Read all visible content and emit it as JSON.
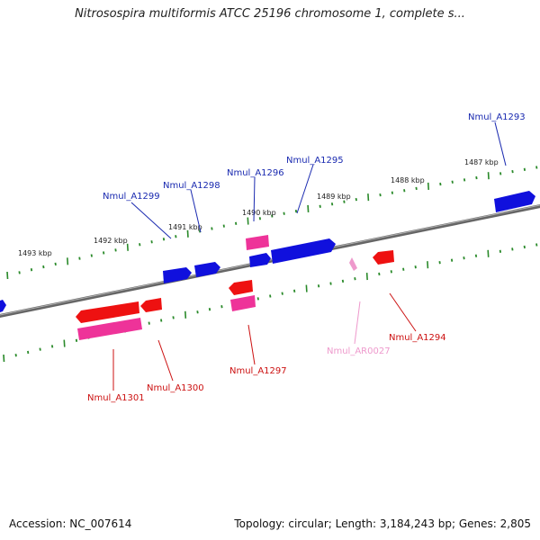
{
  "title": "Nitrosospira multiformis ATCC 25196 chromosome 1, complete s...",
  "footer": {
    "accession": "Accession: NC_007614",
    "summary": "Topology: circular; Length: 3,184,243 bp; Genes: 2,805"
  },
  "colors": {
    "backbone": "#777777",
    "tick": "#2a8a2a",
    "forward_gene": "#1010dd",
    "reverse_gene": "#ee1111",
    "pseudo_gene": "#ee3399",
    "rna_gene": "#ee99cc",
    "forward_label": "#1a2ab0",
    "reverse_label": "#cc1111",
    "rna_label": "#ee99cc"
  },
  "tick_labels": [
    "1493 kbp",
    "1492 kbp",
    "1491 kbp",
    "1490 kbp",
    "1489 kbp",
    "1488 kbp",
    "1487 kbp"
  ],
  "forward_genes": [
    "Nmul_A1293",
    "Nmul_A1295",
    "Nmul_A1296",
    "Nmul_A1298",
    "Nmul_A1299"
  ],
  "reverse_genes": [
    "Nmul_A1294",
    "Nmul_A1297",
    "Nmul_A1300",
    "Nmul_A1301"
  ],
  "rna_genes": [
    "Nmul_AR0027"
  ]
}
